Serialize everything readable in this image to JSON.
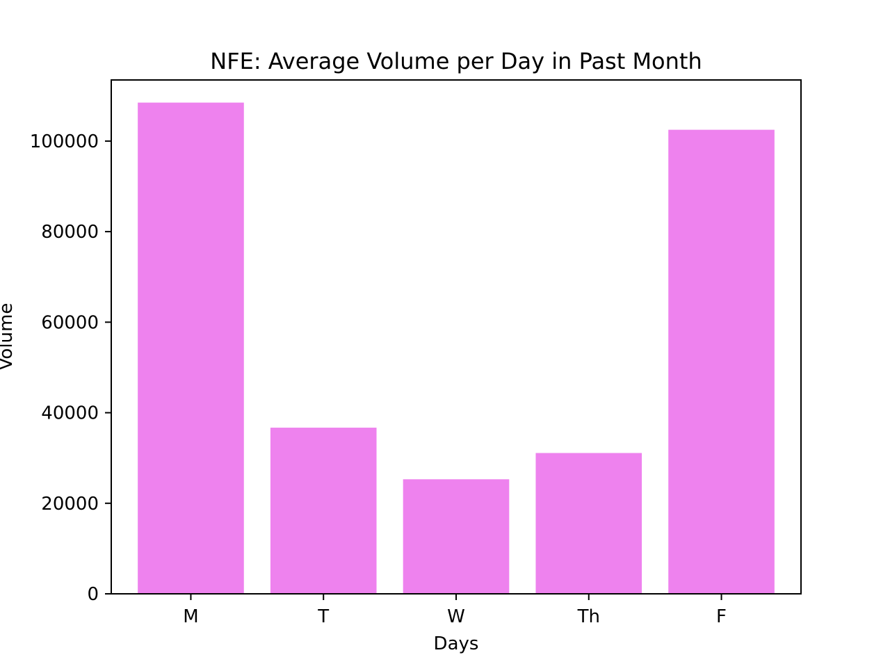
{
  "chart_data": {
    "type": "bar",
    "title": "NFE: Average Volume per Day in Past Month",
    "xlabel": "Days",
    "ylabel": "Volume",
    "categories": [
      "M",
      "T",
      "W",
      "Th",
      "F"
    ],
    "values": [
      108500,
      36700,
      25300,
      31100,
      102500
    ],
    "ylim": [
      0,
      113500
    ],
    "yticks": [
      0,
      20000,
      40000,
      60000,
      80000,
      100000
    ],
    "ytick_labels": [
      "0",
      "20000",
      "40000",
      "60000",
      "80000",
      "100000"
    ],
    "bar_color": "#ee82ee",
    "grid": false,
    "legend": "none"
  }
}
